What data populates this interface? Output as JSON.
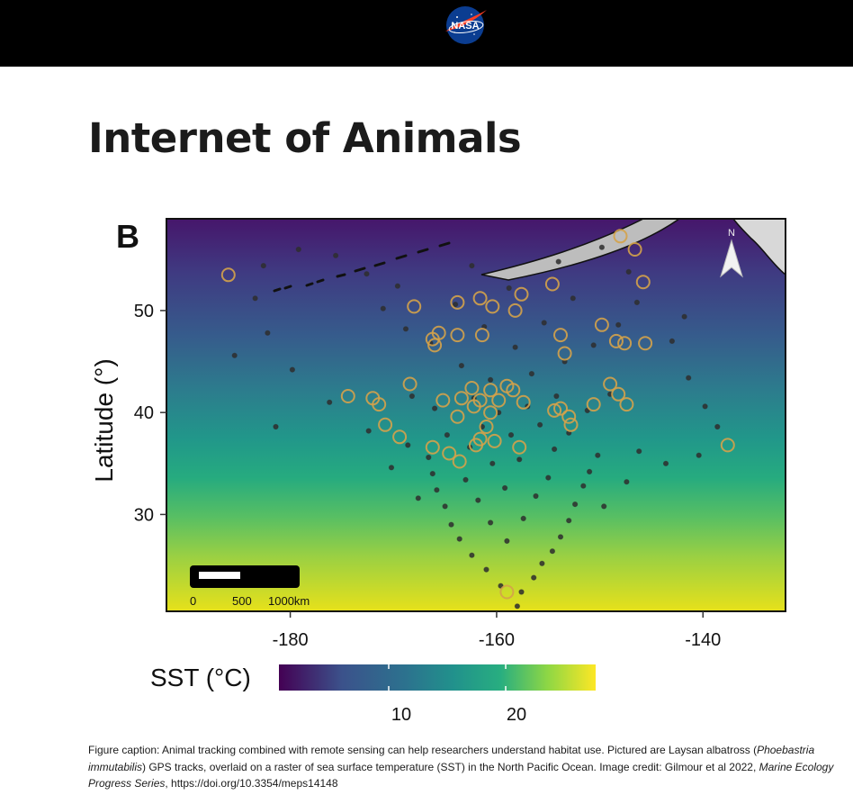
{
  "header": {
    "logo_text": "NASA",
    "logo_icon": "nasa-meatball-icon"
  },
  "page": {
    "title": "Internet of Animals"
  },
  "figure": {
    "panel_label": "B",
    "north_label": "N",
    "scale_bar": {
      "labels": [
        "0",
        "500",
        "1000km"
      ]
    },
    "colorbar": {
      "label": "SST (°C)",
      "ticks": [
        "10",
        "20"
      ]
    }
  },
  "chart_data": {
    "type": "scatter",
    "title": "",
    "xlabel": "",
    "ylabel": "Latitude (°)",
    "xlim": [
      -192,
      -132
    ],
    "ylim": [
      20.5,
      59
    ],
    "x_ticks": [
      -180,
      -160,
      -140
    ],
    "x_tick_labels": [
      "-180",
      "-160",
      "-140"
    ],
    "y_ticks": [
      30,
      40,
      50
    ],
    "y_tick_labels": [
      "30",
      "40",
      "50"
    ],
    "grid": false,
    "colorbar": {
      "label": "SST (°C)",
      "range": [
        0,
        27
      ],
      "ticks": [
        10,
        20
      ]
    },
    "series": [
      {
        "role": "gps-track-points",
        "color": "#2e2e2e",
        "points": [
          [
            -158,
            21
          ],
          [
            -157.6,
            22.4
          ],
          [
            -159.6,
            23
          ],
          [
            -156.4,
            23.8
          ],
          [
            -161,
            24.6
          ],
          [
            -155.6,
            25.2
          ],
          [
            -162.4,
            26
          ],
          [
            -154.6,
            26.4
          ],
          [
            -163.6,
            27.6
          ],
          [
            -153.8,
            27.8
          ],
          [
            -164.4,
            29
          ],
          [
            -153,
            29.4
          ],
          [
            -165,
            30.8
          ],
          [
            -152.4,
            31
          ],
          [
            -165.8,
            32.4
          ],
          [
            -151.6,
            32.8
          ],
          [
            -166.2,
            34
          ],
          [
            -151,
            34.2
          ],
          [
            -166.6,
            35.6
          ],
          [
            -150.2,
            35.8
          ],
          [
            -159,
            27.4
          ],
          [
            -160.6,
            29.2
          ],
          [
            -157.4,
            29.6
          ],
          [
            -161.8,
            31.4
          ],
          [
            -156.2,
            31.8
          ],
          [
            -159.2,
            32.6
          ],
          [
            -163,
            33.4
          ],
          [
            -155,
            33.6
          ],
          [
            -160.4,
            35
          ],
          [
            -157.8,
            35.4
          ],
          [
            -162.6,
            36.6
          ],
          [
            -154.4,
            36.4
          ],
          [
            -158.6,
            37.8
          ],
          [
            -161.4,
            38.6
          ],
          [
            -155.8,
            38.8
          ],
          [
            -164.8,
            37.8
          ],
          [
            -153,
            38
          ],
          [
            -159.8,
            40
          ],
          [
            -157,
            40.6
          ],
          [
            -162.2,
            41.4
          ],
          [
            -154.2,
            41.6
          ],
          [
            -166,
            40.4
          ],
          [
            -151.2,
            40.2
          ],
          [
            -168.2,
            41.6
          ],
          [
            -149,
            41.8
          ],
          [
            -160.6,
            43.2
          ],
          [
            -156.6,
            43.8
          ],
          [
            -163.4,
            44.6
          ],
          [
            -153.4,
            45
          ],
          [
            -158.2,
            46.4
          ],
          [
            -166.4,
            46.8
          ],
          [
            -150.6,
            46.6
          ],
          [
            -161.2,
            48.4
          ],
          [
            -155.4,
            48.8
          ],
          [
            -168.8,
            48.2
          ],
          [
            -148.2,
            48.6
          ],
          [
            -164,
            50.6
          ],
          [
            -152.6,
            51.2
          ],
          [
            -158.8,
            52.2
          ],
          [
            -171,
            50.2
          ],
          [
            -146.4,
            50.8
          ],
          [
            -162.4,
            54.4
          ],
          [
            -154,
            54.8
          ],
          [
            -149.8,
            56.2
          ],
          [
            -147.2,
            53.8
          ],
          [
            -143,
            47
          ],
          [
            -141.4,
            43.4
          ],
          [
            -139.8,
            40.6
          ],
          [
            -138.6,
            38.6
          ],
          [
            -140.4,
            35.8
          ],
          [
            -143.6,
            35
          ],
          [
            -146.2,
            36.2
          ],
          [
            -141.8,
            49.4
          ],
          [
            -176.2,
            41
          ],
          [
            -179.8,
            44.2
          ],
          [
            -182.2,
            47.8
          ],
          [
            -183.4,
            51.2
          ],
          [
            -182.6,
            54.4
          ],
          [
            -179.2,
            56
          ],
          [
            -175.6,
            55.4
          ],
          [
            -172.6,
            53.6
          ],
          [
            -169.6,
            52.4
          ],
          [
            -185.4,
            45.6
          ],
          [
            -181.4,
            38.6
          ],
          [
            -172.4,
            38.2
          ],
          [
            -168.6,
            36.8
          ],
          [
            -167.6,
            31.6
          ],
          [
            -170.2,
            34.6
          ],
          [
            -149.6,
            30.8
          ],
          [
            -147.4,
            33.2
          ]
        ]
      },
      {
        "role": "highlighted-locations",
        "color": "#d4a24a",
        "points": [
          [
            -186,
            53.5
          ],
          [
            -148,
            57.3
          ],
          [
            -146.6,
            56
          ],
          [
            -145.8,
            52.8
          ],
          [
            -154.6,
            52.6
          ],
          [
            -157.6,
            51.6
          ],
          [
            -161.6,
            51.2
          ],
          [
            -163.8,
            50.8
          ],
          [
            -160.4,
            50.4
          ],
          [
            -158.2,
            50
          ],
          [
            -168,
            50.4
          ],
          [
            -166.2,
            47.2
          ],
          [
            -165.6,
            47.8
          ],
          [
            -166,
            46.6
          ],
          [
            -163.8,
            47.6
          ],
          [
            -161.4,
            47.6
          ],
          [
            -153.8,
            47.6
          ],
          [
            -153.4,
            45.8
          ],
          [
            -149.8,
            48.6
          ],
          [
            -148.4,
            47
          ],
          [
            -147.6,
            46.8
          ],
          [
            -145.6,
            46.8
          ],
          [
            -174.4,
            41.6
          ],
          [
            -172,
            41.4
          ],
          [
            -171.4,
            40.8
          ],
          [
            -168.4,
            42.8
          ],
          [
            -165.2,
            41.2
          ],
          [
            -163.4,
            41.4
          ],
          [
            -162.4,
            42.4
          ],
          [
            -161.6,
            41.2
          ],
          [
            -160.6,
            42.2
          ],
          [
            -159.8,
            41.2
          ],
          [
            -159,
            42.6
          ],
          [
            -158.4,
            42.2
          ],
          [
            -157.4,
            41
          ],
          [
            -154.4,
            40.2
          ],
          [
            -153.8,
            40.4
          ],
          [
            -153,
            39.6
          ],
          [
            -152.8,
            38.8
          ],
          [
            -150.6,
            40.8
          ],
          [
            -149,
            42.8
          ],
          [
            -148.2,
            41.8
          ],
          [
            -147.4,
            40.8
          ],
          [
            -170.8,
            38.8
          ],
          [
            -169.4,
            37.6
          ],
          [
            -166.2,
            36.6
          ],
          [
            -164.6,
            36
          ],
          [
            -163.6,
            35.2
          ],
          [
            -162,
            36.8
          ],
          [
            -161.6,
            37.4
          ],
          [
            -160.2,
            37.2
          ],
          [
            -161,
            38.6
          ],
          [
            -160.6,
            40
          ],
          [
            -157.8,
            36.6
          ],
          [
            -162.2,
            40.6
          ],
          [
            -163.8,
            39.6
          ],
          [
            -137.6,
            36.8
          ],
          [
            -159,
            22.4
          ]
        ]
      }
    ]
  },
  "caption": {
    "part1": "Figure caption: Animal tracking combined with remote sensing can help researchers understand habitat use. Pictured are Laysan albatross (",
    "species": "Phoebastria immutabilis",
    "part2": ") GPS tracks, overlaid on a raster of sea surface temperature (SST) in the North Pacific Ocean. Image credit: Gilmour et al 2022, ",
    "journal": "Marine Ecology Progress Series",
    "part3": ", https://doi.org/10.3354/meps14148"
  }
}
